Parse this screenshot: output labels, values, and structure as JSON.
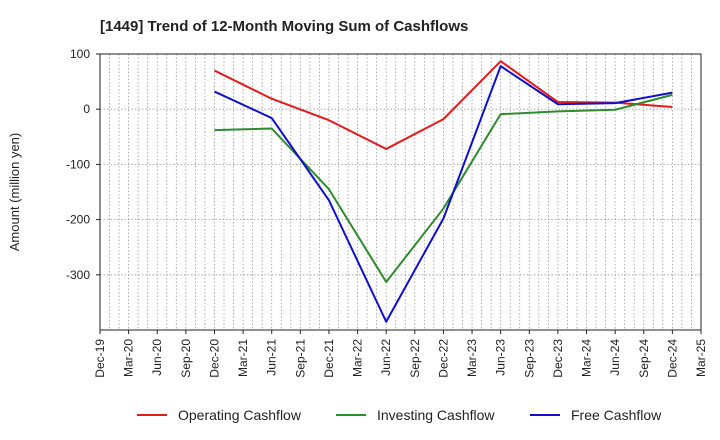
{
  "chart_data": {
    "type": "line",
    "title": "[1449]  Trend of 12-Month Moving Sum of Cashflows",
    "xlabel": "",
    "ylabel": "Amount (million yen)",
    "ylim": [
      -400,
      100
    ],
    "yticks": [
      100,
      0,
      -100,
      -200,
      -300
    ],
    "x_tick_labels": [
      "Dec-19",
      "Mar-20",
      "Jun-20",
      "Sep-20",
      "Dec-20",
      "Mar-21",
      "Jun-21",
      "Sep-21",
      "Dec-21",
      "Mar-22",
      "Jun-22",
      "Sep-22",
      "Dec-22",
      "Mar-23",
      "Jun-23",
      "Sep-23",
      "Dec-23",
      "Mar-24",
      "Jun-24",
      "Sep-24",
      "Dec-24",
      "Mar-25"
    ],
    "x": [
      "Dec-20",
      "Jun-21",
      "Dec-21",
      "Jun-22",
      "Dec-22",
      "Jun-23",
      "Dec-23",
      "Jun-24",
      "Dec-24"
    ],
    "series": [
      {
        "name": "Operating Cashflow",
        "color": "#e41a1c",
        "values": [
          70,
          19,
          -20,
          -72,
          -18,
          87,
          13,
          12,
          4
        ]
      },
      {
        "name": "Investing Cashflow",
        "color": "#2e8b2e",
        "values": [
          -38,
          -35,
          -145,
          -313,
          -180,
          -9,
          -4,
          -1,
          26
        ]
      },
      {
        "name": "Free Cashflow",
        "color": "#1010cc",
        "values": [
          32,
          -16,
          -165,
          -385,
          -198,
          78,
          9,
          11,
          30
        ]
      }
    ],
    "grid": true,
    "legend_position": "bottom"
  }
}
